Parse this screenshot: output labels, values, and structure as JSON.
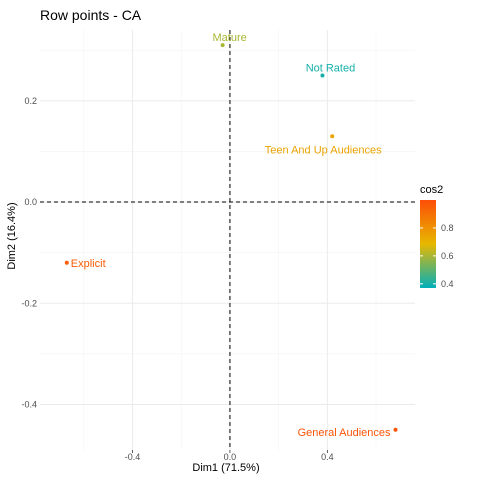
{
  "chart_data": {
    "type": "scatter",
    "title": "Row points - CA",
    "xlabel": "Dim1 (71.5%)",
    "ylabel": "Dim2 (16.4%)",
    "xlim": [
      -0.78,
      0.76
    ],
    "ylim": [
      -0.49,
      0.34
    ],
    "xticks": [
      -0.4,
      0.0,
      0.4
    ],
    "yticks": [
      -0.4,
      -0.2,
      0.0,
      0.2
    ],
    "xtick_labels": [
      "-0.4",
      "0.0",
      "0.4"
    ],
    "ytick_labels": [
      "-0.4",
      "-0.2",
      "0.0",
      "0.2"
    ],
    "reference_lines": {
      "x": 0,
      "y": 0,
      "style": "dashed"
    },
    "grid": true,
    "points": [
      {
        "label": "Mature",
        "x": -0.03,
        "y": 0.31,
        "cos2": 0.6
      },
      {
        "label": "Not Rated",
        "x": 0.38,
        "y": 0.25,
        "cos2": 0.4
      },
      {
        "label": "Teen And Up Audiences",
        "x": 0.42,
        "y": 0.13,
        "cos2": 0.75
      },
      {
        "label": "Explicit",
        "x": -0.67,
        "y": -0.12,
        "cos2": 0.96
      },
      {
        "label": "General Audiences",
        "x": 0.68,
        "y": -0.45,
        "cos2": 0.98
      }
    ],
    "legend": {
      "title": "cos2",
      "position": "right",
      "ticks": [
        0.4,
        0.6,
        0.8
      ],
      "tick_labels": [
        "0.4",
        "0.6",
        "0.8"
      ],
      "range": [
        0.37,
        1.0
      ],
      "colors": [
        "#00AFBB",
        "#E7B800",
        "#FC4E07"
      ]
    }
  }
}
